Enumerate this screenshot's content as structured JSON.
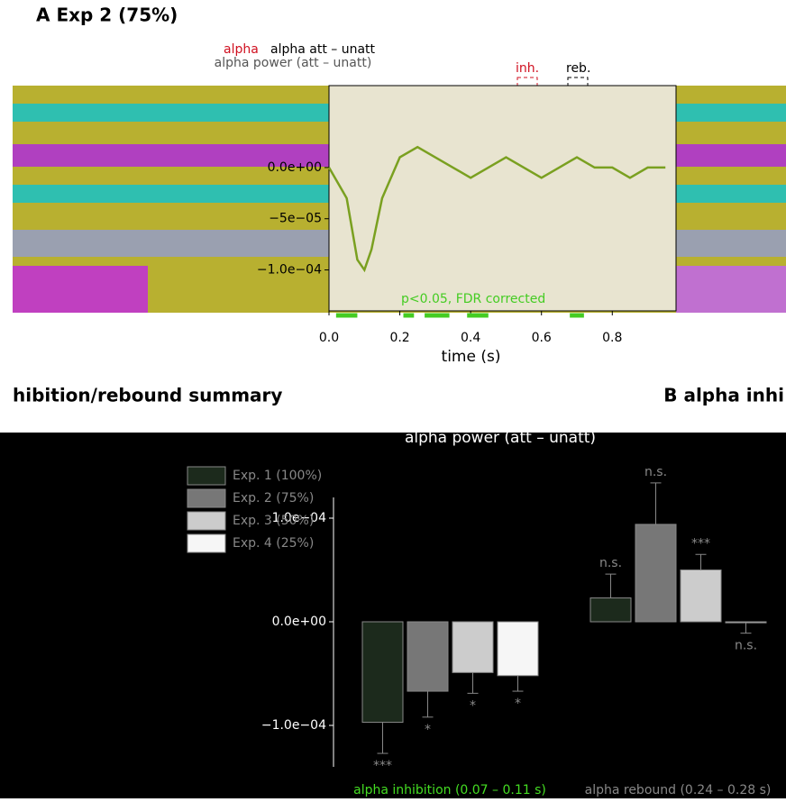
{
  "header": {
    "panel_label": "A Exp 2 (75%)",
    "legend_alpha": "alpha",
    "legend_contrast": "alpha att – unatt",
    "inh": "inh.",
    "reb": "reb.",
    "summary_title": "hibition/rebound summary",
    "panel_b": "B alpha inhi"
  },
  "chart_data": [
    {
      "type": "line",
      "title": "alpha power (att – unatt)",
      "x_label": "time (s)",
      "x": [
        0.0,
        0.05,
        0.08,
        0.1,
        0.12,
        0.15,
        0.2,
        0.25,
        0.3,
        0.35,
        0.4,
        0.45,
        0.5,
        0.55,
        0.6,
        0.65,
        0.7,
        0.75,
        0.8,
        0.85,
        0.9,
        0.95
      ],
      "series": [
        {
          "name": "alpha att – unatt",
          "color": "#7aa020",
          "values": [
            0.0,
            -3e-05,
            -9e-05,
            -0.0001,
            -8e-05,
            -3e-05,
            1e-05,
            2e-05,
            1e-05,
            0.0,
            -1e-05,
            0.0,
            1e-05,
            0.0,
            -1e-05,
            0.0,
            1e-05,
            0.0,
            0.0,
            -1e-05,
            0.0,
            0.0
          ]
        }
      ],
      "xlim": [
        0,
        0.98
      ],
      "xticks": [
        {
          "value": 0,
          "label": "0.0"
        },
        0.2,
        0.4,
        0.6,
        0.8
      ],
      "ylim": [
        -0.00014,
        8e-05
      ],
      "yticks": [
        {
          "value": -0.0001,
          "label": "−1.0e−04"
        },
        {
          "value": -5e-05,
          "label": "−5e−05"
        },
        {
          "value": 0,
          "label": "0.0e+00"
        }
      ],
      "significant_ranges": [
        [
          0.02,
          0.08
        ],
        [
          0.21,
          0.24
        ],
        [
          0.27,
          0.34
        ],
        [
          0.39,
          0.45
        ],
        [
          0.68,
          0.72
        ]
      ],
      "significance_color": "#44cc22",
      "annotation": "p<0.05, FDR corrected"
    },
    {
      "type": "bar",
      "title": "alpha power (att – unatt)",
      "categories": [
        "alpha inhibition (0.07 – 0.11 s)",
        "alpha rebound (0.24 – 0.28 s)"
      ],
      "category_colors": [
        "#44dd22",
        "#888888"
      ],
      "series": [
        {
          "name": "Exp. 1 (100%)",
          "color": "#1c2a1c",
          "values": [
            -9.7e-05,
            2.3e-05
          ],
          "errors": [
            3e-05,
            2.3e-05
          ],
          "significance": [
            "***",
            "n.s."
          ]
        },
        {
          "name": "Exp. 2 (75%)",
          "color": "#777777",
          "values": [
            -6.7e-05,
            9.4e-05
          ],
          "errors": [
            2.5e-05,
            4e-05
          ],
          "significance": [
            "*",
            "n.s."
          ]
        },
        {
          "name": "Exp. 3 (50%)",
          "color": "#cccccc",
          "values": [
            -4.9e-05,
            5e-05
          ],
          "errors": [
            2e-05,
            1.5e-05
          ],
          "significance": [
            "*",
            "***"
          ]
        },
        {
          "name": "Exp. 4 (25%)",
          "color": "#f6f6f6",
          "values": [
            -5.2e-05,
            -1e-06
          ],
          "errors": [
            1.5e-05,
            1e-05
          ],
          "significance": [
            "*",
            "n.s."
          ]
        }
      ],
      "ylim": [
        -0.00014,
        0.00012
      ],
      "yticks": [
        {
          "value": -0.0001,
          "label": "−1.0e−04"
        },
        {
          "value": 0,
          "label": "0.0e+00"
        },
        {
          "value": 0.0001,
          "label": "1.0e−04"
        }
      ],
      "legend": "upper left"
    }
  ]
}
